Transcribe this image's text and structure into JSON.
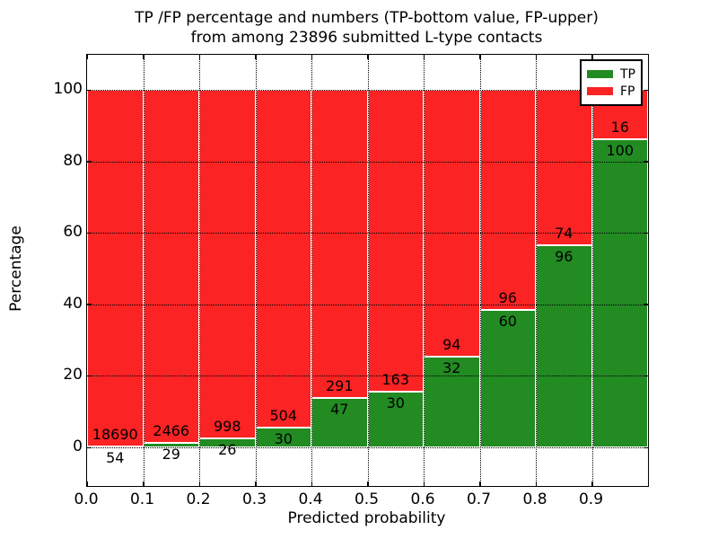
{
  "title": {
    "line1": "TP /FP percentage and numbers (TP-bottom value, FP-upper)",
    "line2": "from among 23896 submitted L-type contacts"
  },
  "axes": {
    "xlabel": "Predicted probability",
    "ylabel": "Percentage",
    "xtick_labels": [
      "0.0",
      "0.1",
      "0.2",
      "0.3",
      "0.4",
      "0.5",
      "0.6",
      "0.7",
      "0.8",
      "0.9"
    ],
    "ytick_labels": [
      "0",
      "20",
      "40",
      "60",
      "80",
      "100"
    ],
    "ytick_values": [
      0,
      20,
      40,
      60,
      80,
      100
    ]
  },
  "legend": {
    "items": [
      {
        "label": "TP",
        "color": "#228b22"
      },
      {
        "label": "FP",
        "color": "#fb2323"
      }
    ]
  },
  "colors": {
    "tp": "#228b22",
    "fp": "#fb2323",
    "grid": "#000000",
    "bar_edge": "#ffffff",
    "axis": "#000000",
    "background": "#ffffff"
  },
  "chart_data": {
    "type": "bar",
    "stacked": true,
    "normalized_bar_total_percent": 100,
    "title": "TP /FP percentage and numbers (TP-bottom value, FP-upper) from among 23896 submitted L-type contacts",
    "xlabel": "Predicted probability",
    "ylabel": "Percentage",
    "xlim": [
      0.0,
      1.0
    ],
    "ylim": [
      -10.8,
      109.8
    ],
    "grid": true,
    "grid_style": "dotted",
    "legend_position": "upper right",
    "total_submitted": 23896,
    "contact_type": "L-type",
    "bin_width": 0.1,
    "bin_starts": [
      0.0,
      0.1,
      0.2,
      0.3,
      0.4,
      0.5,
      0.6,
      0.7,
      0.8,
      0.9
    ],
    "series": [
      {
        "name": "TP",
        "color": "#228b22",
        "position": "bottom",
        "counts": [
          54,
          29,
          26,
          30,
          47,
          30,
          32,
          60,
          96,
          100
        ],
        "percent_of_bin": [
          0.29,
          1.16,
          2.54,
          5.62,
          13.91,
          15.54,
          25.4,
          38.46,
          56.47,
          86.21
        ]
      },
      {
        "name": "FP",
        "color": "#fb2323",
        "position": "top",
        "counts": [
          18690,
          2466,
          998,
          504,
          291,
          163,
          94,
          96,
          74,
          16
        ],
        "percent_of_bin": [
          99.71,
          98.84,
          97.46,
          94.38,
          86.09,
          84.46,
          74.6,
          61.54,
          43.53,
          13.79
        ]
      }
    ]
  }
}
